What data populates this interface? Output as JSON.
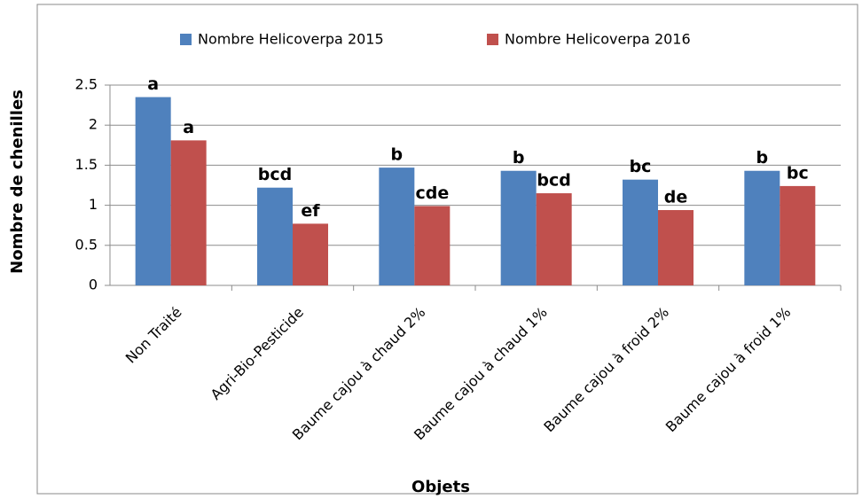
{
  "chart_data": {
    "type": "bar",
    "y_label": "Nombre de chenilles",
    "x_label": "Objets",
    "categories": [
      "Non Traité",
      "Agri-Bio-Pesticide",
      "Baume cajou à chaud 2%",
      "Baume cajou à chaud 1%",
      "Baume cajou à froid 2%",
      "Baume cajou à froid 1%"
    ],
    "series": [
      {
        "name": "Nombre Helicoverpa 2015",
        "color": "#4f81bd",
        "values": [
          2.35,
          1.22,
          1.47,
          1.43,
          1.32,
          1.43
        ],
        "annotations": [
          "a",
          "bcd",
          "b",
          "b",
          "bc",
          "b"
        ]
      },
      {
        "name": "Nombre Helicoverpa 2016",
        "color": "#c0504d",
        "values": [
          1.81,
          0.77,
          0.99,
          1.15,
          0.94,
          1.24
        ],
        "annotations": [
          "a",
          "ef",
          "cde",
          "bcd",
          "de",
          "bc"
        ]
      }
    ],
    "ylim": [
      0,
      2.5
    ],
    "yticks": [
      0,
      0.5,
      1,
      {
        "value": 1.5,
        "label": "1.5"
      },
      2,
      2.5
    ],
    "grid": true,
    "legend": "top"
  }
}
